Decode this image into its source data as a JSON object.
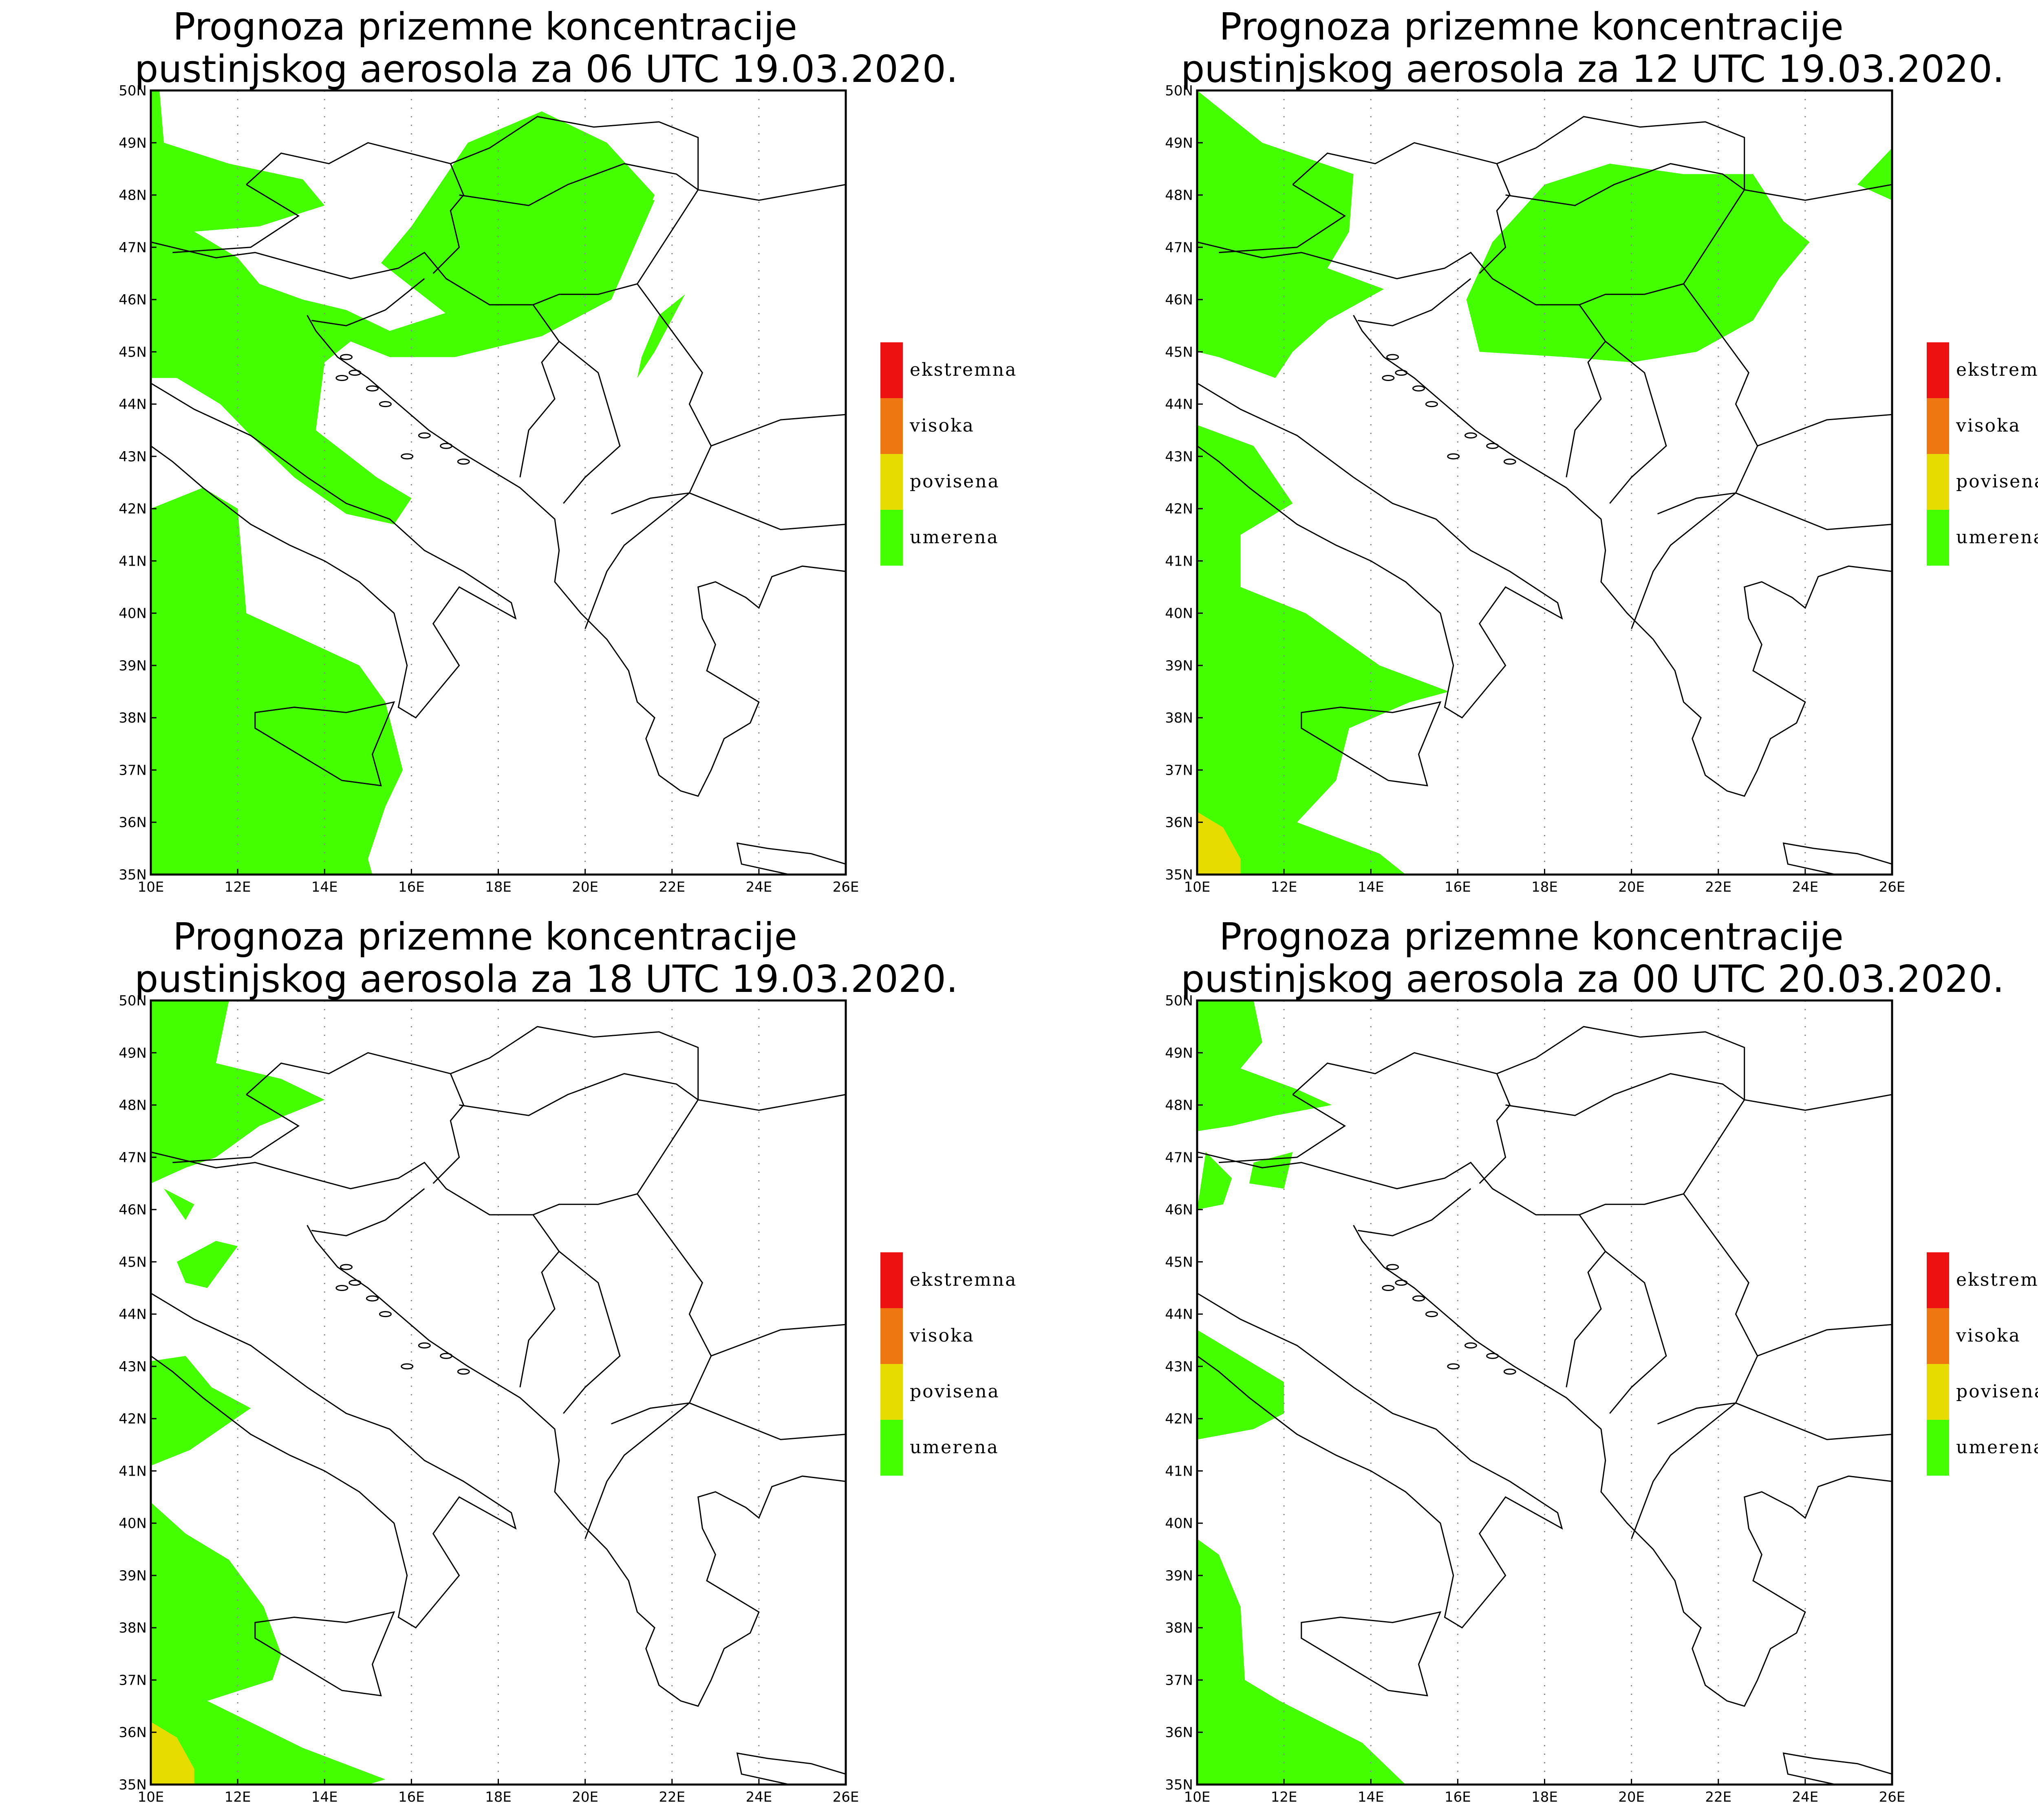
{
  "panels": [
    {
      "title_line1": "Prognoza prizemne koncentracije",
      "title_line2": "pustinjskog aerosola za 06 UTC 19.03.2020."
    },
    {
      "title_line1": "Prognoza prizemne koncentracije",
      "title_line2": "pustinjskog aerosola za 12 UTC 19.03.2020."
    },
    {
      "title_line1": "Prognoza prizemne koncentracije",
      "title_line2": "pustinjskog aerosola za 18 UTC 19.03.2020."
    },
    {
      "title_line1": "Prognoza prizemne koncentracije",
      "title_line2": "pustinjskog aerosola za 00 UTC 20.03.2020."
    }
  ],
  "legend": [
    {
      "label": "ekstremna",
      "color": "#ee1111"
    },
    {
      "label": "visoka",
      "color": "#ee7711"
    },
    {
      "label": "povisena",
      "color": "#e6dc00"
    },
    {
      "label": "umerena",
      "color": "#44ff00"
    }
  ],
  "axes": {
    "lon_labels": [
      "10E",
      "12E",
      "14E",
      "16E",
      "18E",
      "20E",
      "22E",
      "24E",
      "26E"
    ],
    "lat_labels": [
      "35N",
      "36N",
      "37N",
      "38N",
      "39N",
      "40N",
      "41N",
      "42N",
      "43N",
      "44N",
      "45N",
      "46N",
      "47N",
      "48N",
      "49N",
      "50N"
    ],
    "lon_range": [
      10,
      26
    ],
    "lat_range": [
      35,
      50
    ]
  },
  "colors": {
    "moderate": "#44ff00",
    "elevated": "#e6dc00",
    "border": "#000000",
    "grid": "#888888"
  }
}
